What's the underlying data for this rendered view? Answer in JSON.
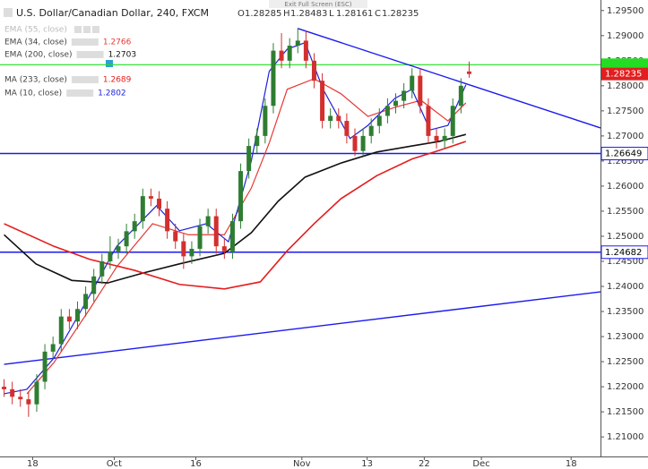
{
  "chart_data": {
    "type": "candlestick",
    "title": "U.S. Dollar/Canadian Dollar, 240, FXCM",
    "ohlc_labels": [
      "O",
      "H",
      "L",
      "C"
    ],
    "ohlc": [
      1.28285,
      1.28483,
      1.28161,
      1.28235
    ],
    "screen_hint": "Exit Full Screen (ESC)",
    "hidden_indicators": [
      "EMA (55, close)"
    ],
    "up_color": "#2e7d32",
    "down_color": "#d32f2f",
    "x": [
      -3.5,
      -2.5,
      -1.5,
      -0.5,
      0.5,
      1.5,
      2.5,
      3.5,
      4.5,
      5.5,
      6.5,
      7.5,
      8.5,
      9.5,
      10.5,
      11.5,
      12.5,
      13.5,
      14.5,
      15.5,
      16.5,
      17.5,
      18.5,
      19.5,
      20.5,
      21.5,
      22.5,
      23.5,
      24.5,
      25.5,
      26.5,
      27.5,
      28.5,
      29.5,
      30.5,
      31.5,
      32.5,
      33.5,
      34.5,
      35.5,
      36.5,
      37.5,
      38.5,
      39.5,
      40.5,
      41.5,
      42.5,
      43.5,
      44.5,
      45.5,
      46.5,
      47.5,
      48.5,
      49.5,
      50.5,
      51.5,
      52.5,
      53.5
    ],
    "open": [
      1.22,
      1.2195,
      1.218,
      1.2175,
      1.2165,
      1.221,
      1.227,
      1.2285,
      1.234,
      1.233,
      1.2355,
      1.2385,
      1.242,
      1.245,
      1.247,
      1.248,
      1.251,
      1.253,
      1.258,
      1.2575,
      1.2555,
      1.251,
      1.249,
      1.246,
      1.2475,
      1.252,
      1.254,
      1.248,
      1.247,
      1.253,
      1.263,
      1.268,
      1.27,
      1.276,
      1.287,
      1.285,
      1.288,
      1.289,
      1.285,
      1.281,
      1.273,
      1.274,
      1.273,
      1.27,
      1.267,
      1.27,
      1.272,
      1.274,
      1.276,
      1.277,
      1.279,
      1.282,
      1.276,
      1.27,
      1.269,
      1.27,
      1.276,
      1.28285
    ],
    "high": [
      1.2215,
      1.221,
      1.2195,
      1.219,
      1.2225,
      1.2285,
      1.23,
      1.2355,
      1.2355,
      1.237,
      1.24,
      1.2435,
      1.2465,
      1.25,
      1.2495,
      1.2525,
      1.2545,
      1.2595,
      1.2595,
      1.259,
      1.257,
      1.2525,
      1.2505,
      1.249,
      1.2535,
      1.2555,
      1.2555,
      1.2495,
      1.2545,
      1.2645,
      1.2695,
      1.2715,
      1.2775,
      1.2885,
      1.2905,
      1.2895,
      1.2915,
      1.291,
      1.2865,
      1.2825,
      1.2755,
      1.2755,
      1.2745,
      1.2715,
      1.2715,
      1.2735,
      1.2755,
      1.2775,
      1.2785,
      1.2805,
      1.2835,
      1.2835,
      1.2775,
      1.2715,
      1.2715,
      1.2775,
      1.2815,
      1.28483
    ],
    "low": [
      1.218,
      1.2165,
      1.216,
      1.214,
      1.215,
      1.2195,
      1.2255,
      1.227,
      1.2315,
      1.2315,
      1.234,
      1.237,
      1.2405,
      1.2435,
      1.2455,
      1.2465,
      1.2495,
      1.2515,
      1.256,
      1.254,
      1.2495,
      1.2475,
      1.2435,
      1.2445,
      1.246,
      1.2505,
      1.2465,
      1.2455,
      1.2455,
      1.2515,
      1.2615,
      1.2665,
      1.2685,
      1.2745,
      1.2835,
      1.2835,
      1.2865,
      1.2835,
      1.2795,
      1.2715,
      1.2715,
      1.2715,
      1.2685,
      1.266,
      1.266,
      1.2685,
      1.2705,
      1.2725,
      1.2745,
      1.2755,
      1.2775,
      1.2745,
      1.2685,
      1.2675,
      1.2675,
      1.2685,
      1.2745,
      1.28161
    ],
    "close": [
      1.2195,
      1.218,
      1.2175,
      1.2165,
      1.221,
      1.227,
      1.2285,
      1.234,
      1.233,
      1.2355,
      1.2385,
      1.242,
      1.245,
      1.247,
      1.248,
      1.251,
      1.253,
      1.258,
      1.2575,
      1.2555,
      1.251,
      1.249,
      1.246,
      1.2475,
      1.252,
      1.254,
      1.248,
      1.247,
      1.253,
      1.263,
      1.268,
      1.27,
      1.276,
      1.287,
      1.285,
      1.288,
      1.289,
      1.285,
      1.281,
      1.273,
      1.274,
      1.273,
      1.27,
      1.267,
      1.27,
      1.272,
      1.274,
      1.276,
      1.277,
      1.279,
      1.282,
      1.276,
      1.27,
      1.269,
      1.27,
      1.276,
      1.28,
      1.28235
    ],
    "series": [
      {
        "name": "EMA (34, close)",
        "last_value": 1.2766,
        "color": "#e53935",
        "x": [
          -0.7,
          2.6,
          7.0,
          10.3,
          14.7,
          19.1,
          23.5,
          26.8,
          29.0,
          31.2,
          34.5,
          37.8,
          41.1,
          44.4,
          47.6,
          50.9,
          53.1
        ],
        "values": [
          1.2186,
          1.2248,
          1.2355,
          1.2439,
          1.2525,
          1.2503,
          1.2503,
          1.2596,
          1.2686,
          1.2793,
          1.2814,
          1.2784,
          1.2739,
          1.2757,
          1.2771,
          1.273,
          1.2766
        ]
      },
      {
        "name": "EMA (200, close)",
        "last_value": 1.2703,
        "color": "#111111",
        "x": [
          -3.5,
          0.4,
          4.8,
          9.2,
          13.6,
          18.0,
          23.5,
          26.8,
          30.1,
          33.4,
          37.8,
          42.2,
          46.5,
          49.8,
          53.1
        ],
        "values": [
          1.2503,
          1.2445,
          1.2412,
          1.2407,
          1.2427,
          1.2445,
          1.2466,
          1.2507,
          1.257,
          1.2618,
          1.2646,
          1.2668,
          1.268,
          1.2689,
          1.2703
        ]
      },
      {
        "name": "MA (233, close)",
        "last_value": 1.2689,
        "color": "#e51c1c",
        "x": [
          -3.5,
          2.6,
          7.0,
          12.5,
          18.0,
          23.5,
          27.9,
          31.2,
          34.5,
          37.8,
          42.2,
          46.5,
          49.8,
          53.1
        ],
        "values": [
          1.2525,
          1.248,
          1.2454,
          1.2432,
          1.2404,
          1.2395,
          1.2409,
          1.2471,
          1.2525,
          1.2575,
          1.2621,
          1.2654,
          1.2671,
          1.2689
        ]
      },
      {
        "name": "MA (10, close)",
        "last_value": 1.2802,
        "color": "#1e22d8",
        "x": [
          -3.5,
          -0.7,
          2.6,
          7.0,
          10.3,
          15.2,
          18.0,
          21.3,
          24.0,
          26.8,
          29.0,
          31.2,
          33.4,
          35.6,
          38.9,
          41.1,
          44.4,
          46.5,
          48.7,
          50.9,
          53.1
        ],
        "values": [
          1.2186,
          1.2195,
          1.2257,
          1.2382,
          1.248,
          1.2561,
          1.2511,
          1.2525,
          1.2489,
          1.265,
          1.2829,
          1.2873,
          1.2886,
          1.2793,
          1.2695,
          1.2721,
          1.2775,
          1.2793,
          1.2712,
          1.2721,
          1.2802
        ]
      }
    ],
    "trendlines": [
      {
        "x": [
          32.5,
          69.6
        ],
        "values": [
          1.29143,
          1.2716
        ],
        "color": "#1a1aee"
      },
      {
        "x": [
          -3.5,
          69.6
        ],
        "values": [
          1.22446,
          1.23893
        ],
        "color": "#1a1aee"
      }
    ],
    "hlines": [
      {
        "value": 1.26649,
        "color": "#1a1aee"
      },
      {
        "value": 1.24682,
        "color": "#1a1aee"
      }
    ],
    "price_line": {
      "value": 1.2842,
      "color": "#22dd22"
    },
    "xlim": [
      -4,
      69.6
    ],
    "xticks": [
      {
        "value": 0,
        "label": "18"
      },
      {
        "value": 10,
        "label": "Oct"
      },
      {
        "value": 20,
        "label": "16"
      },
      {
        "value": 33,
        "label": "Nov"
      },
      {
        "value": 41,
        "label": "13"
      },
      {
        "value": 48,
        "label": "22"
      },
      {
        "value": 55,
        "label": "Dec"
      },
      {
        "value": 66,
        "label": "18"
      }
    ],
    "ylim": [
      1.2061,
      1.2971
    ],
    "yticks": [
      {
        "value": 1.21,
        "label": "1.21000"
      },
      {
        "value": 1.215,
        "label": "1.21500"
      },
      {
        "value": 1.22,
        "label": "1.22000"
      },
      {
        "value": 1.225,
        "label": "1.22500"
      },
      {
        "value": 1.23,
        "label": "1.23000"
      },
      {
        "value": 1.235,
        "label": "1.23500"
      },
      {
        "value": 1.24,
        "label": "1.24000"
      },
      {
        "value": 1.245,
        "label": "1.24500"
      },
      {
        "value": 1.25,
        "label": "1.25000"
      },
      {
        "value": 1.255,
        "label": "1.25500"
      },
      {
        "value": 1.26,
        "label": "1.26000"
      },
      {
        "value": 1.265,
        "label": "1.26500"
      },
      {
        "value": 1.27,
        "label": "1.27000"
      },
      {
        "value": 1.275,
        "label": "1.27500"
      },
      {
        "value": 1.28,
        "label": "1.28000"
      },
      {
        "value": 1.285,
        "label": "1.28500"
      },
      {
        "value": 1.29,
        "label": "1.29000"
      },
      {
        "value": 1.295,
        "label": "1.29500"
      }
    ]
  }
}
